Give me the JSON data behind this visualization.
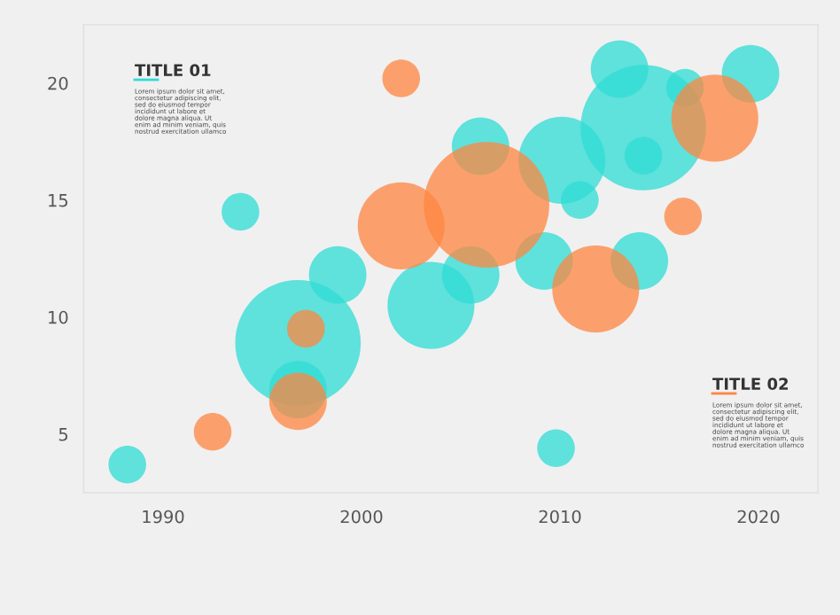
{
  "chart_data": {
    "type": "bubble",
    "xlim": [
      1986,
      2023
    ],
    "ylim": [
      2.5,
      22.5
    ],
    "xticks": [
      1990,
      2000,
      2010,
      2020
    ],
    "yticks": [
      5,
      10,
      15,
      20
    ],
    "grid": false,
    "legend": false,
    "annotations": [
      "TITLE 01",
      "Lorem ipsum dolor sit amet,\nconsectetur adipiscing elit,\nsed do eiusmod tempor\nincididunt ut labore et\ndolore magna aliqua. Ut\nenim ad minim veniam, quis\nnostrud exercitation ullamco",
      "TITLE 02",
      "Lorem ipsum dolor sit amet,\nconsectetur adipiscing elit,\nsed do eiusmod tempor\nincididunt ut labore et\ndolore magna aliqua. Ut\nenim ad minim veniam, quis\nnostrud exercitation ullamco"
    ],
    "series": [
      {
        "color": "#2fdcd6",
        "x": [
          1988.2,
          1993.9,
          1996.8,
          1996.8,
          1998.8,
          2003.5,
          2005.5,
          2006.0,
          2009.2,
          2009.8,
          2010.1,
          2011.0,
          2013.0,
          2014.0,
          2014.2,
          2014.2,
          2016.3,
          2019.6
        ],
        "values": [
          3.7,
          14.5,
          8.9,
          6.9,
          11.8,
          10.5,
          11.8,
          17.3,
          12.4,
          4.4,
          16.7,
          15.0,
          20.6,
          12.4,
          18.1,
          16.9,
          19.8,
          20.4
        ],
        "sizes": [
          0.09,
          0.09,
          1,
          0.21,
          0.21,
          0.48,
          0.21,
          0.21,
          0.21,
          0.09,
          0.48,
          0.09,
          0.21,
          0.21,
          1,
          0.09,
          0.09,
          0.21
        ]
      },
      {
        "color": "#ff8540",
        "x": [
          1992.5,
          1996.8,
          1997.2,
          2002.0,
          2002.0,
          2006.3,
          2011.8,
          2016.2,
          2017.8
        ],
        "values": [
          5.1,
          6.4,
          9.5,
          20.2,
          13.9,
          14.8,
          11.2,
          14.3,
          18.5
        ],
        "sizes": [
          0.09,
          0.21,
          0.09,
          0.09,
          0.48,
          1,
          0.48,
          0.09,
          0.48
        ]
      }
    ]
  }
}
